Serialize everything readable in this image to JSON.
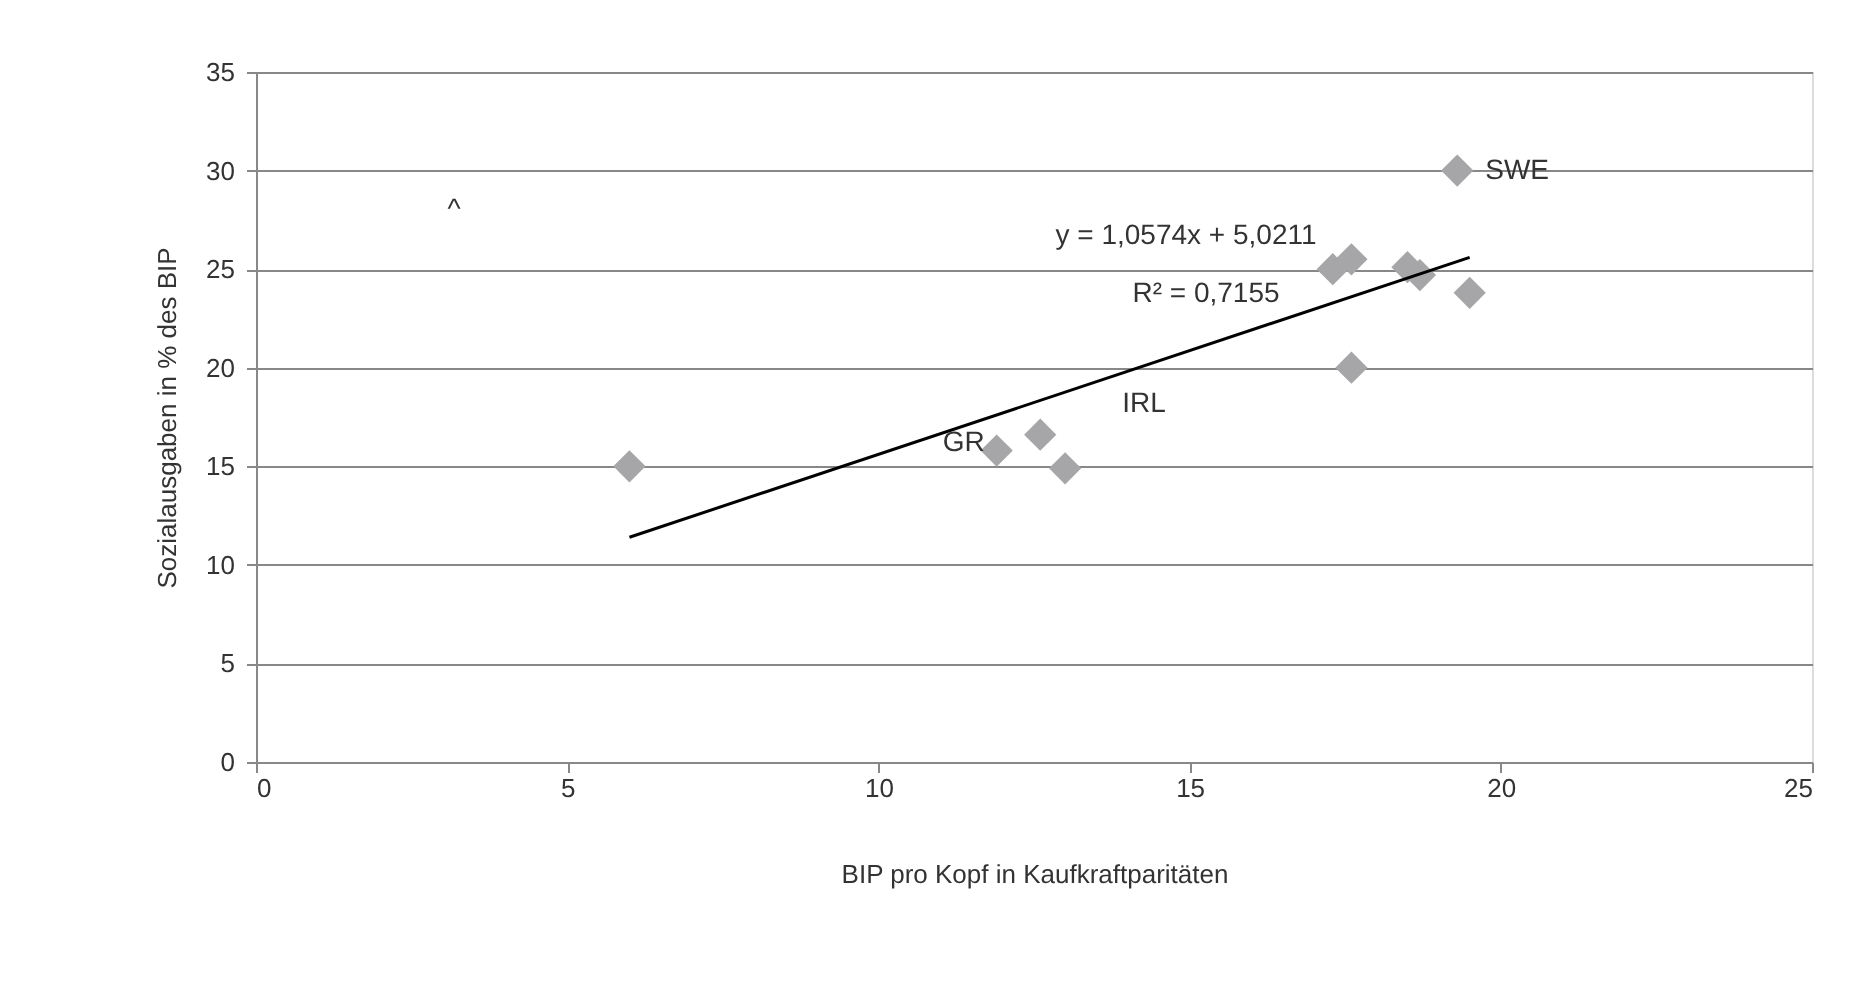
{
  "chart_data": {
    "type": "scatter",
    "xlabel": "BIP pro Kopf in Kaufkraftparitäten",
    "ylabel": "Sozialausgaben in % des BIP",
    "xlim": [
      0,
      25
    ],
    "xticks": [
      0,
      5,
      10,
      15,
      20,
      25
    ],
    "ylim": [
      0,
      35
    ],
    "yticks": [
      0,
      5,
      10,
      15,
      20,
      25,
      30,
      35
    ],
    "grid": "y",
    "marker": "diamond",
    "series": [
      {
        "color": "#a6a6a8",
        "x": [
          6.0,
          11.9,
          12.6,
          13.0,
          17.3,
          17.6,
          17.6,
          18.5,
          18.7,
          19.3,
          19.5
        ],
        "values": [
          15.0,
          15.8,
          16.6,
          14.9,
          25.0,
          25.5,
          20.0,
          25.1,
          24.7,
          30.0,
          23.8
        ]
      },
      {
        "type": "line",
        "marker": "none",
        "color": "#000000",
        "x": [
          6.0,
          19.5
        ],
        "values": [
          11.4,
          25.6
        ]
      }
    ],
    "annotations": [
      {
        "text": "SWE",
        "x": 19.3,
        "y": 30.0
      },
      {
        "text": "GR",
        "x": 11.9,
        "y": 15.8
      },
      "IRL",
      "y = 1,0574x + 5,0211",
      "R² = 0,7155",
      "^"
    ]
  }
}
